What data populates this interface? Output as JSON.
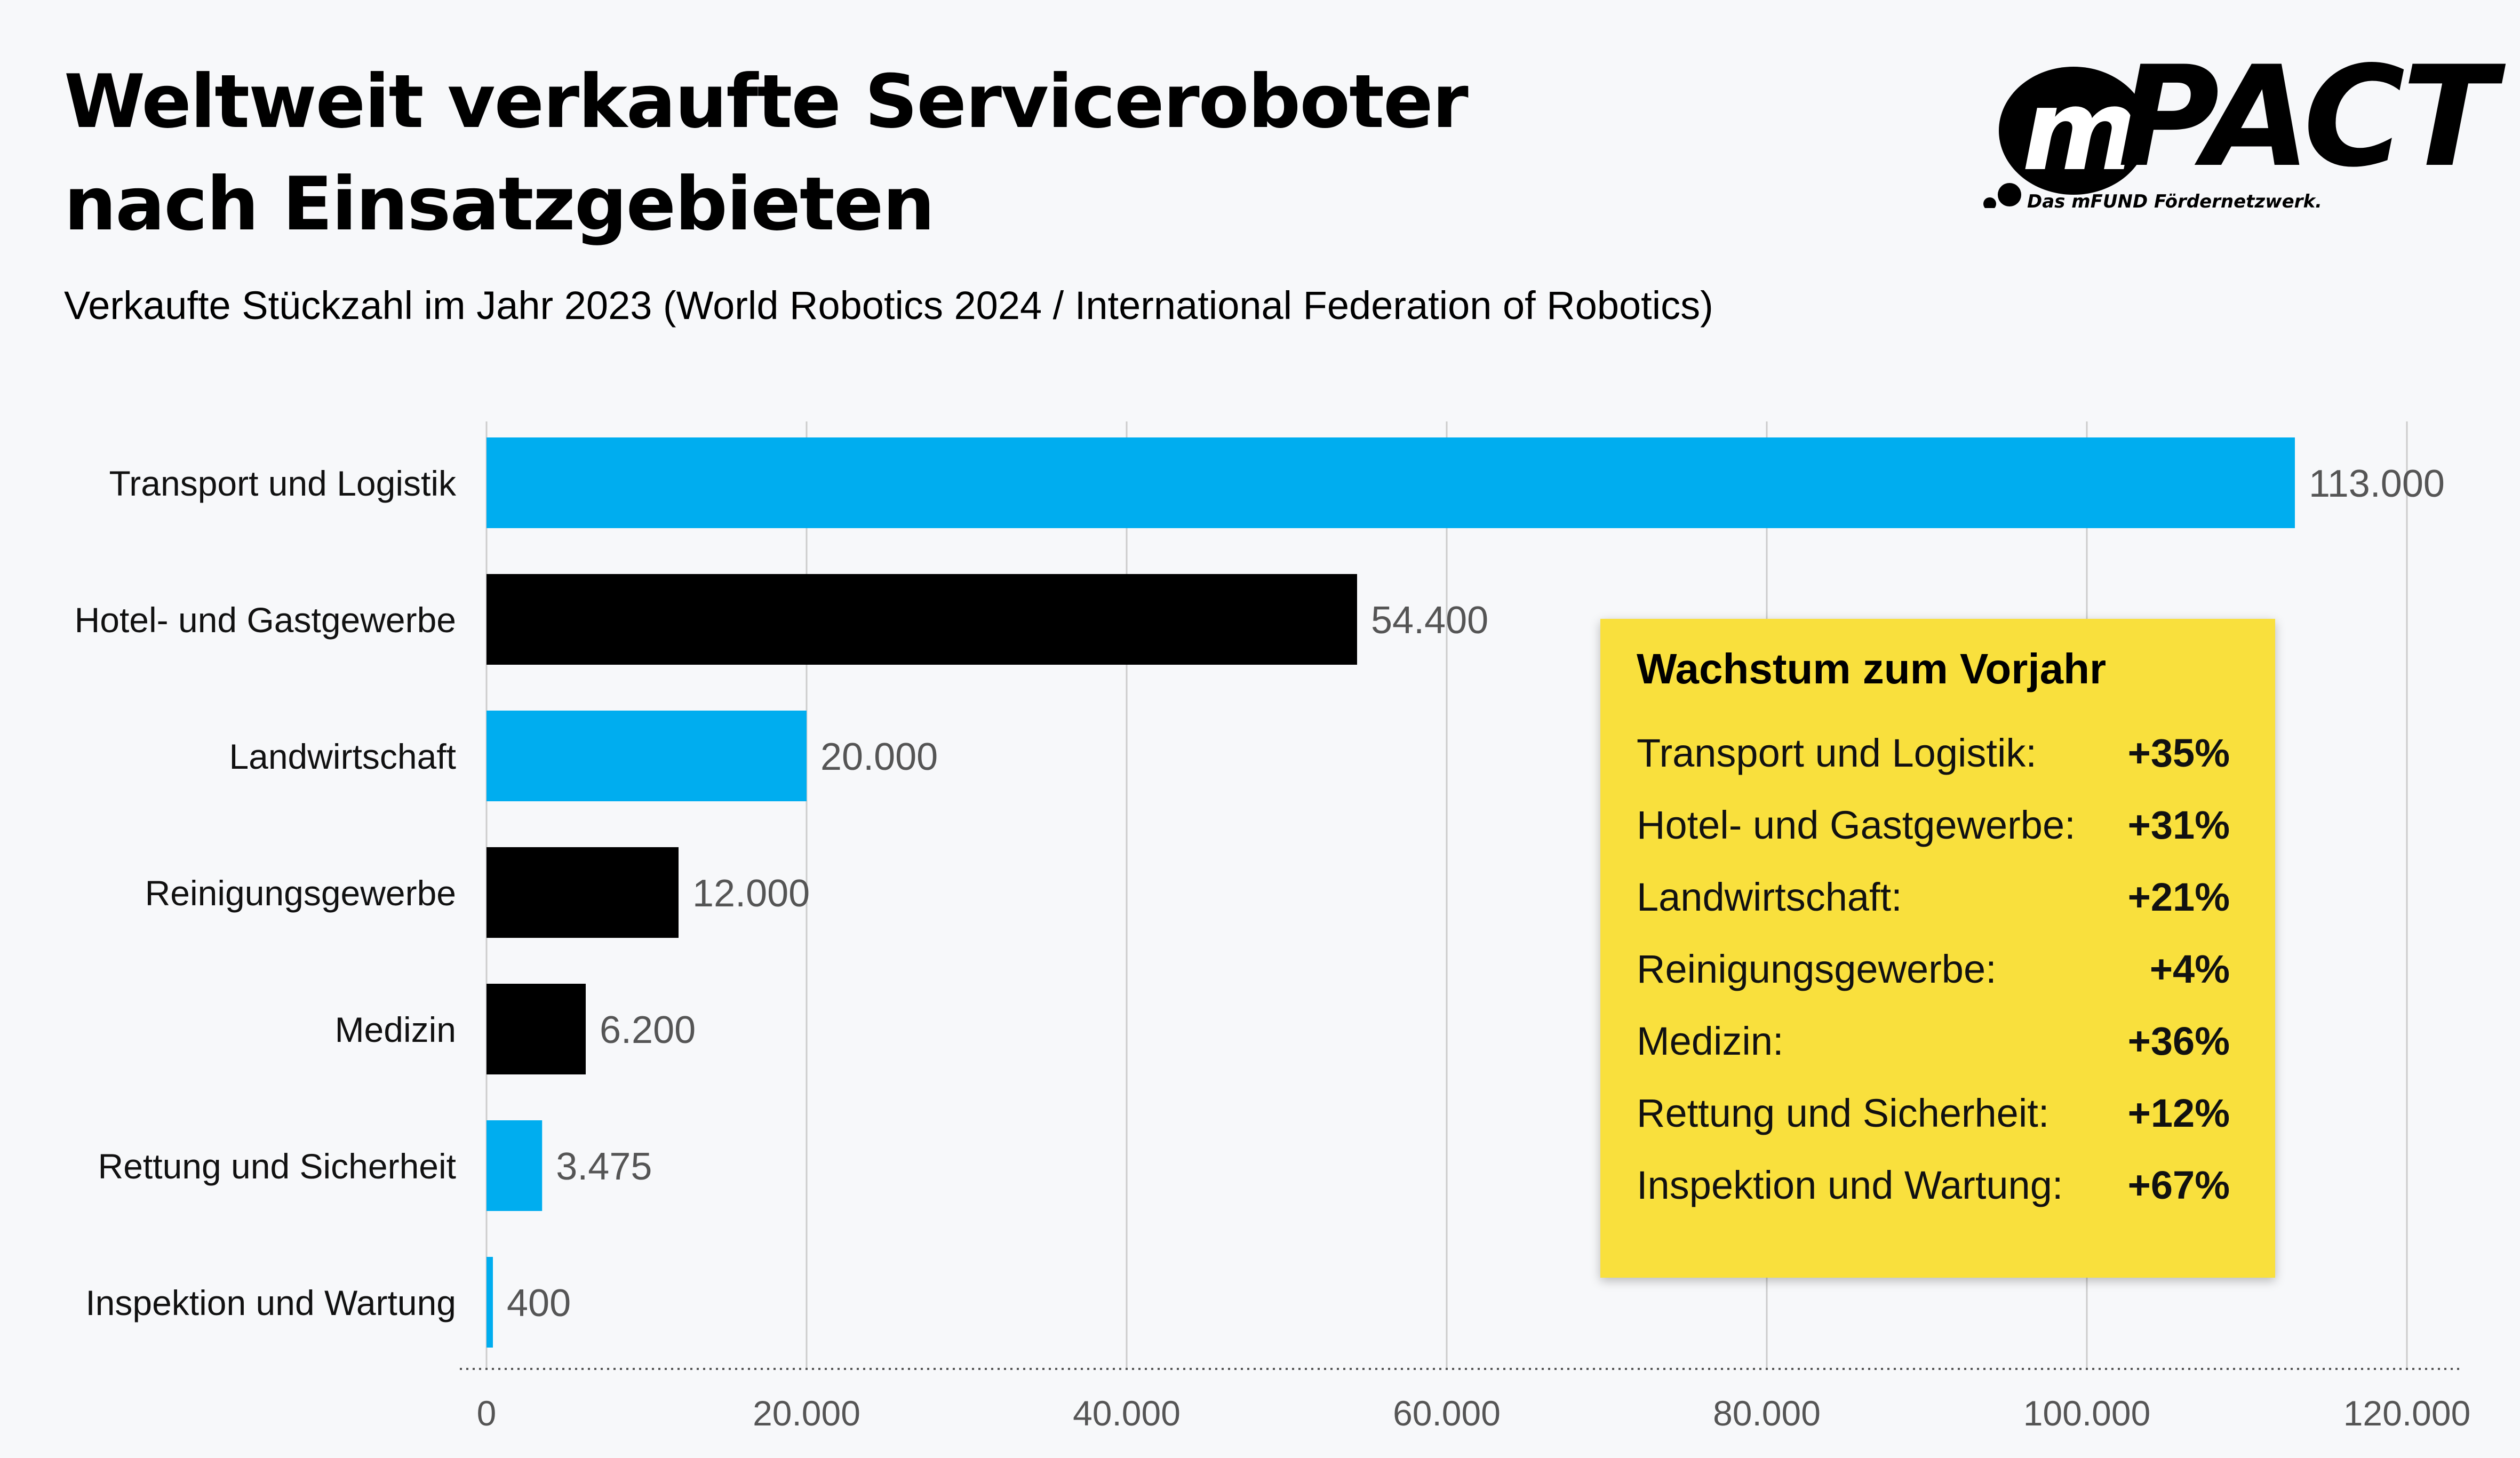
{
  "title_line1": "Weltweit verkaufte Serviceroboter",
  "title_line2": "nach Einsatzgebieten",
  "subtitle": "Verkaufte Stückzahl im Jahr 2023 (World Robotics 2024 / International Federation of Robotics)",
  "logo": {
    "brand_m": "m",
    "brand_pact": "PACT",
    "tagline": "Das mFUND Fördernetzwerk."
  },
  "colors": {
    "blue": "#00adef",
    "black": "#000000",
    "box": "#f9e03d",
    "grid": "#cccccc",
    "label": "#555555"
  },
  "chart_data": {
    "type": "bar",
    "orientation": "horizontal",
    "categories": [
      "Transport und Logistik",
      "Hotel- und Gastgewerbe",
      "Landwirtschaft",
      "Reinigungsgewerbe",
      "Medizin",
      "Rettung und Sicherheit",
      "Inspektion und Wartung"
    ],
    "values": [
      113000,
      54400,
      20000,
      12000,
      6200,
      3475,
      400
    ],
    "value_labels": [
      "113.000",
      "54.400",
      "20.000",
      "12.000",
      "6.200",
      "3.475",
      "400"
    ],
    "bar_colors": [
      "blue",
      "black",
      "blue",
      "black",
      "black",
      "blue",
      "blue"
    ],
    "xlim": [
      0,
      120000
    ],
    "xticks": [
      0,
      20000,
      40000,
      60000,
      80000,
      100000,
      120000
    ],
    "xtick_labels": [
      "0",
      "20.000",
      "40.000",
      "60.000",
      "80.000",
      "100.000",
      "120.000"
    ],
    "grid": true
  },
  "growth_box": {
    "title": "Wachstum zum Vorjahr",
    "rows": [
      {
        "label": "Transport und Logistik:",
        "value": "+35%"
      },
      {
        "label": "Hotel- und Gastgewerbe:",
        "value": "+31%"
      },
      {
        "label": "Landwirtschaft:",
        "value": "+21%"
      },
      {
        "label": "Reinigungsgewerbe:",
        "value": "+4%"
      },
      {
        "label": "Medizin:",
        "value": "+36%"
      },
      {
        "label": "Rettung und Sicherheit:",
        "value": "+12%"
      },
      {
        "label": "Inspektion und Wartung:",
        "value": "+67%"
      }
    ]
  }
}
